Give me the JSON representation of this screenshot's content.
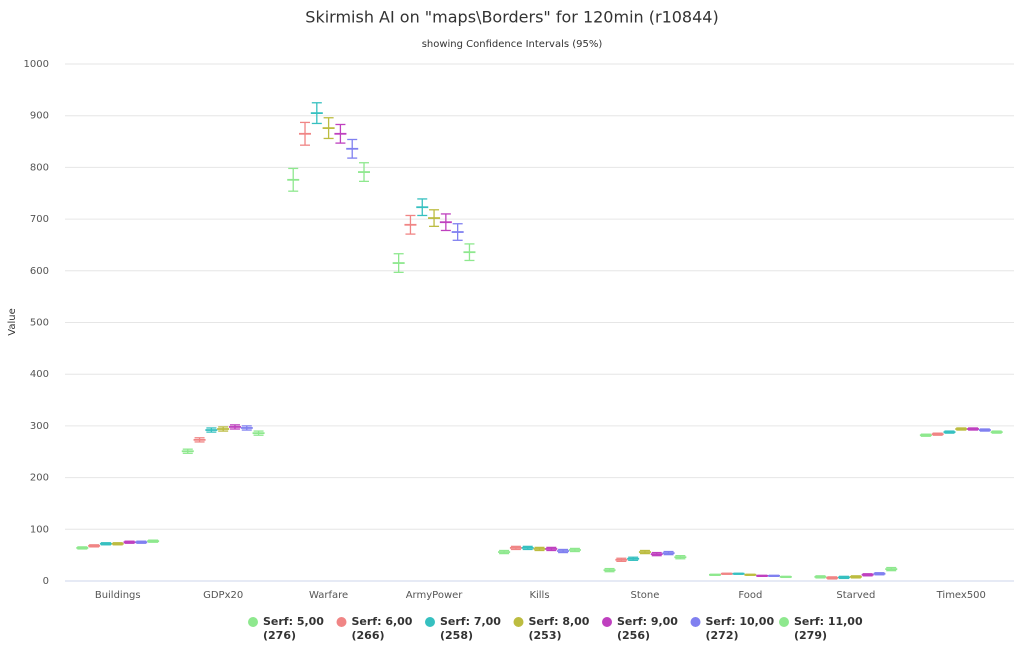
{
  "chart_data": {
    "type": "errorbar",
    "title": "Skirmish AI on \"maps\\Borders\" for 120min (r10844)",
    "subtitle": "showing Confidence Intervals (95%)",
    "y_label": "Value",
    "categories": [
      "Buildings",
      "GDPx20",
      "Warfare",
      "ArmyPower",
      "Kills",
      "Stone",
      "Food",
      "Starved",
      "Timex500"
    ],
    "ylim": [
      0,
      1000
    ],
    "yticks": [
      0,
      100,
      200,
      300,
      400,
      500,
      600,
      700,
      800,
      900,
      1000
    ],
    "grid": true,
    "series": [
      {
        "name": "Serf: 5,00",
        "note": "(276)",
        "color": "#8ee88e",
        "values": [
          64,
          251,
          776,
          615,
          56,
          21,
          12,
          8,
          282
        ],
        "errors": [
          2,
          4,
          22,
          18,
          3,
          3,
          1,
          2,
          2
        ]
      },
      {
        "name": "Serf: 6,00",
        "note": "(266)",
        "color": "#f08585",
        "values": [
          68,
          273,
          865,
          689,
          64,
          41,
          14,
          6,
          284
        ],
        "errors": [
          2,
          4,
          22,
          18,
          3,
          3,
          1,
          2,
          2
        ]
      },
      {
        "name": "Serf: 7,00",
        "note": "(258)",
        "color": "#36c0c0",
        "values": [
          72,
          292,
          905,
          723,
          64,
          43,
          14,
          7,
          288
        ],
        "errors": [
          2,
          4,
          20,
          16,
          3,
          3,
          1,
          2,
          2
        ]
      },
      {
        "name": "Serf: 8,00",
        "note": "(253)",
        "color": "#bcbc40",
        "values": [
          72,
          294,
          876,
          702,
          62,
          56,
          12,
          8,
          294
        ],
        "errors": [
          2,
          4,
          20,
          16,
          3,
          3,
          1,
          2,
          2
        ]
      },
      {
        "name": "Serf: 9,00",
        "note": "(256)",
        "color": "#bf40bf",
        "values": [
          75,
          298,
          865,
          694,
          62,
          52,
          10,
          12,
          294
        ],
        "errors": [
          2,
          4,
          18,
          16,
          3,
          3,
          1,
          2,
          2
        ]
      },
      {
        "name": "Serf: 10,00",
        "note": "(272)",
        "color": "#8080f0",
        "values": [
          75,
          296,
          836,
          675,
          58,
          54,
          10,
          14,
          292
        ],
        "errors": [
          2,
          4,
          18,
          16,
          3,
          3,
          1,
          2,
          2
        ]
      },
      {
        "name": "Serf: 11,00",
        "note": "(279)",
        "color": "#8ee88e",
        "values": [
          77,
          286,
          791,
          636,
          60,
          46,
          8,
          23,
          288
        ],
        "errors": [
          2,
          4,
          18,
          16,
          3,
          3,
          1,
          3,
          2
        ]
      }
    ]
  }
}
